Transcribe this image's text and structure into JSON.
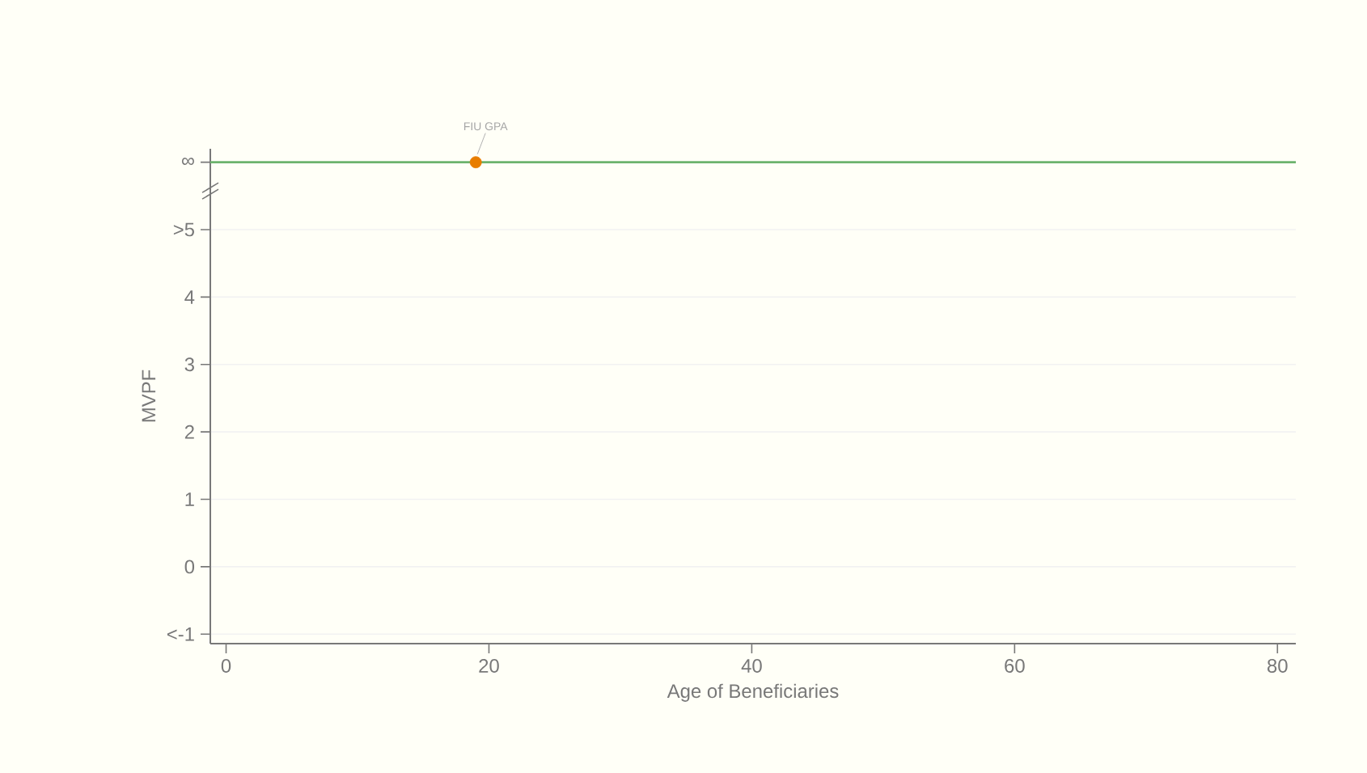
{
  "chart_data": {
    "type": "scatter",
    "xlabel": "Age of Beneficiaries",
    "ylabel": "MVPF",
    "x": [
      19
    ],
    "values": [
      6
    ],
    "color": "#e87d00",
    "marker": "circle",
    "xlim": [
      -1.2,
      81.4
    ],
    "xticks": [
      0,
      20,
      40,
      60,
      80
    ],
    "ylim": [
      -1.14,
      6.2
    ],
    "yticks": [
      {
        "value": -1,
        "label": "<-1"
      },
      0,
      1,
      2,
      3,
      4,
      {
        "value": 5,
        "label": ">5"
      },
      {
        "value": 6,
        "label": "∞"
      }
    ],
    "ref_lines": [
      {
        "axis": "y",
        "value": 6,
        "color": "#6db36d"
      }
    ],
    "annotations": [
      {
        "text": "FIU GPA",
        "x": 19,
        "y": 6
      }
    ],
    "grid": "y",
    "legend": false
  }
}
